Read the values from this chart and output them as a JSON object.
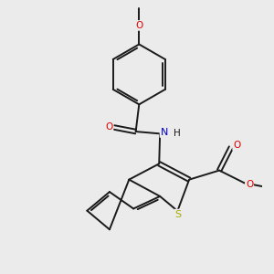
{
  "bg_color": "#ebebeb",
  "bond_color": "#1a1a1a",
  "bond_width": 1.4,
  "dbo": 0.055,
  "atom_colors": {
    "O": "#dd0000",
    "N": "#0000cc",
    "S": "#aaaa00",
    "C": "#1a1a1a",
    "H": "#1a1a1a"
  },
  "figsize": [
    3.0,
    3.0
  ],
  "dpi": 100
}
